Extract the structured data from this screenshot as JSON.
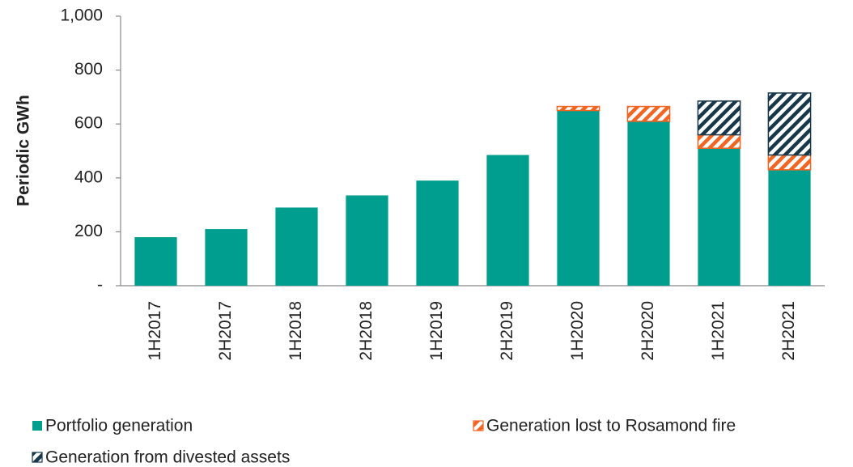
{
  "chart_data": {
    "type": "stacked_bar",
    "y_label": "Periodic GWh",
    "categories": [
      "1H2017",
      "2H2017",
      "1H2018",
      "2H2018",
      "1H2019",
      "2H2019",
      "1H2020",
      "2H2020",
      "1H2021",
      "2H2021"
    ],
    "series": [
      {
        "name": "Portfolio generation",
        "color": "#009e8e",
        "pattern": "solid",
        "values": [
          180,
          210,
          290,
          335,
          390,
          485,
          650,
          610,
          510,
          430
        ]
      },
      {
        "name": "Generation lost to Rosamond fire",
        "color": "#f26522",
        "pattern": "hatch",
        "values": [
          null,
          null,
          null,
          null,
          null,
          null,
          15,
          55,
          50,
          55
        ]
      },
      {
        "name": "Generation from divested assets",
        "color": "#17384a",
        "pattern": "hatch",
        "values": [
          null,
          null,
          null,
          null,
          null,
          null,
          null,
          null,
          125,
          230
        ]
      }
    ],
    "ylim": [
      0,
      1000
    ],
    "yticks": [
      {
        "value": 0,
        "label": "-"
      },
      200,
      400,
      600,
      800,
      {
        "value": 1000,
        "label": "1,000"
      }
    ],
    "grid": false
  }
}
